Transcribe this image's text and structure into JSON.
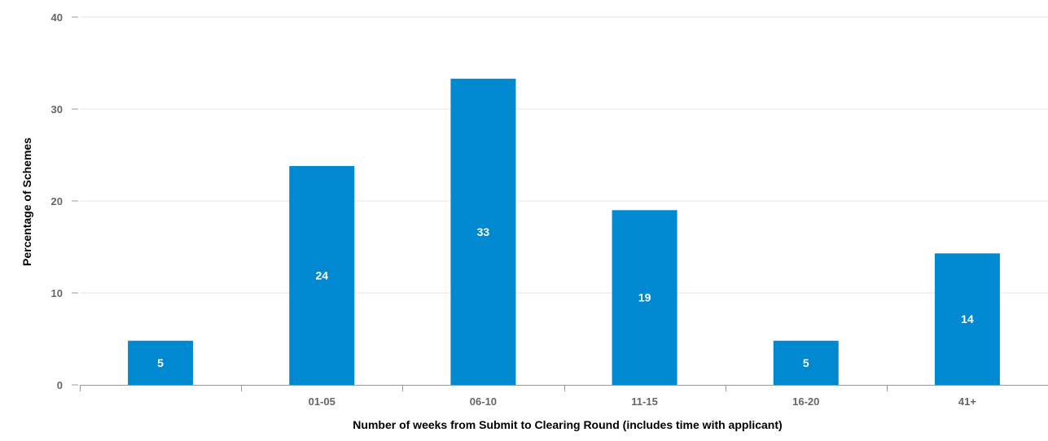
{
  "chart_data": {
    "type": "bar",
    "categories": [
      "",
      "01-05",
      "06-10",
      "11-15",
      "16-20",
      "41+"
    ],
    "values": [
      4.8,
      23.8,
      33.3,
      19.0,
      4.8,
      14.3
    ],
    "data_labels": [
      "5",
      "24",
      "33",
      "19",
      "5",
      "14"
    ],
    "xlabel": "Number of weeks from Submit to Clearing Round (includes time with applicant)",
    "ylabel": "Percentage of Schemes",
    "ylim": [
      0,
      40
    ],
    "yticks": [
      "0",
      "10",
      "20",
      "30",
      "40"
    ],
    "grid": true,
    "legend": "none",
    "colors": {
      "bar": "#0088d1",
      "grid": "#e6e6e6",
      "axis": "#999999"
    }
  }
}
